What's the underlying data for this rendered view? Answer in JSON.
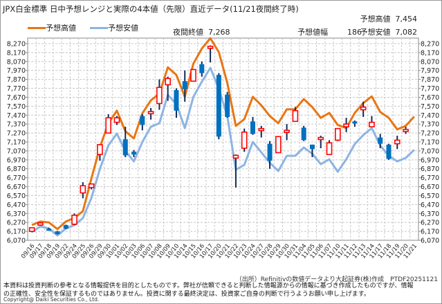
{
  "header": {
    "title": "JPX白金標準 日中予想レンジと実際の4本値（先限）直近データ(11/21夜間終了時)",
    "pred_high_label": "予想高値",
    "pred_high_value": "7,454",
    "night_close_label": "夜間終値",
    "night_close_value": "7,268",
    "range_label": "予想値幅",
    "range_value": "186",
    "pred_low_label": "予想安値",
    "pred_low_value": "7,082"
  },
  "colors": {
    "high_line": "#E97511",
    "low_line": "#8DB4E2",
    "up_candle": "#FF0000",
    "down_candle": "#0070C0",
    "wick": "#0F2A5A"
  },
  "chart_data": {
    "type": "candlestick+line",
    "title": "JPX白金標準 日中予想レンジと実際の4本値（先限）直近データ(11/21夜間終了時)",
    "ylim": [
      6070,
      8270
    ],
    "ytick_step": 100,
    "grid": true,
    "legend": {
      "placement": "top-left",
      "entries": [
        "予想高値",
        "予想安値"
      ]
    },
    "categories": [
      "09/16",
      "09/17",
      "09/18",
      "09/19",
      "09/22",
      "09/24",
      "09/25",
      "09/26",
      "09/29",
      "09/30",
      "10/01",
      "10/02",
      "10/03",
      "10/06",
      "10/07",
      "10/08",
      "10/09",
      "10/10",
      "10/14",
      "10/15",
      "10/16",
      "10/17",
      "10/20",
      "10/21",
      "10/22",
      "10/23",
      "10/24",
      "10/27",
      "10/28",
      "10/29",
      "10/30",
      "10/31",
      "11/04",
      "11/05",
      "11/06",
      "11/07",
      "11/10",
      "11/11",
      "11/12",
      "11/13",
      "11/14",
      "11/17",
      "11/18",
      "11/19",
      "11/20",
      "11/21"
    ],
    "series": [
      {
        "name": "予想高値",
        "type": "line",
        "values": [
          6240,
          6280,
          6270,
          6195,
          6280,
          6320,
          6395,
          6760,
          7110,
          7380,
          7520,
          7290,
          7210,
          7490,
          7635,
          7710,
          8005,
          7920,
          7675,
          8045,
          8215,
          8330,
          8175,
          7830,
          7350,
          7425,
          7675,
          7580,
          7460,
          7380,
          7535,
          7535,
          7650,
          7560,
          7440,
          7495,
          7360,
          7325,
          7495,
          7605,
          7680,
          7505,
          7440,
          7310,
          7350,
          7454
        ]
      },
      {
        "name": "予想安値",
        "type": "line",
        "values": [
          6163,
          6225,
          6202,
          6124,
          6202,
          6240,
          6318,
          6543,
          6868,
          7131,
          7263,
          7069,
          6953,
          7170,
          7340,
          7379,
          7697,
          7596,
          7325,
          7674,
          7844,
          7999,
          7766,
          7457,
          6860,
          6914,
          7170,
          7054,
          6937,
          6845,
          7015,
          7015,
          7108,
          7039,
          6922,
          6976,
          6837,
          6976,
          7147,
          7247,
          7325,
          7131,
          7015,
          6953,
          6992,
          7082
        ]
      },
      {
        "name": "4本値",
        "type": "candlestick",
        "ohlc": [
          [
            6170,
            6215,
            6160,
            6210
          ],
          [
            6240,
            6270,
            6235,
            6265
          ],
          [
            6200,
            6210,
            6185,
            6190
          ],
          [
            6170,
            6175,
            6135,
            6140
          ],
          [
            6240,
            6245,
            6195,
            6200
          ],
          [
            6250,
            6370,
            6240,
            6350
          ],
          [
            6600,
            6720,
            6540,
            6680
          ],
          [
            6660,
            6700,
            6640,
            6700
          ],
          [
            7030,
            7140,
            6960,
            7140
          ],
          [
            7270,
            7480,
            7270,
            7440
          ],
          [
            7390,
            7460,
            7360,
            7440
          ],
          [
            7200,
            7340,
            7000,
            7020
          ],
          [
            7060,
            7080,
            7000,
            7030
          ],
          [
            7460,
            7480,
            7300,
            7360
          ],
          [
            7490,
            7550,
            7420,
            7510
          ],
          [
            7600,
            7870,
            7530,
            7780
          ],
          [
            7810,
            7900,
            7630,
            7880
          ],
          [
            7750,
            7770,
            7440,
            7520
          ],
          [
            7850,
            7970,
            7620,
            7760
          ],
          [
            7850,
            7980,
            7850,
            7980
          ],
          [
            8040,
            8070,
            7900,
            7940
          ],
          [
            8220,
            8250,
            8060,
            8240
          ],
          [
            7920,
            7940,
            7200,
            7230
          ],
          [
            7700,
            7730,
            7440,
            7450
          ],
          [
            6990,
            7030,
            6660,
            7020
          ],
          [
            7100,
            7320,
            7060,
            7280
          ],
          [
            7400,
            7450,
            7250,
            7260
          ],
          [
            7310,
            7350,
            7220,
            7320
          ],
          [
            7150,
            7180,
            6870,
            6960
          ],
          [
            7050,
            7230,
            7050,
            7230
          ],
          [
            7280,
            7370,
            7190,
            7300
          ],
          [
            7400,
            7560,
            7400,
            7520
          ],
          [
            7330,
            7350,
            7180,
            7190
          ],
          [
            7140,
            7140,
            7000,
            7090
          ],
          [
            7210,
            7240,
            7100,
            7220
          ],
          [
            7030,
            7190,
            7030,
            7160
          ],
          [
            7190,
            7320,
            7180,
            7320
          ],
          [
            7340,
            7440,
            7280,
            7370
          ],
          [
            7400,
            7410,
            7340,
            7380
          ],
          [
            7530,
            7620,
            7450,
            7560
          ],
          [
            7340,
            7460,
            7340,
            7390
          ],
          [
            7220,
            7260,
            7100,
            7150
          ],
          [
            7140,
            7150,
            6970,
            6980
          ],
          [
            7150,
            7240,
            7090,
            7190
          ],
          [
            7300,
            7340,
            7260,
            7310
          ],
          null
        ]
      }
    ]
  },
  "footer": {
    "source": "（出所）Refinitivの数値データより大起証券(株)作成　PTDF20251121",
    "disclaimer_1": "本資料は投資判断の参考となる情報提供を目的としたものです。弊社が信頼できると判断した情報源からの情報に基づき作成したものですが、情報",
    "disclaimer_2": "の正確性、安全性を保証するものではありません。投資に関する最終決定は、投資家ご自身の判断で行うようお願い申し上げます。",
    "copyright": "Copyright@ Daiki Securities Co., Ltd."
  }
}
